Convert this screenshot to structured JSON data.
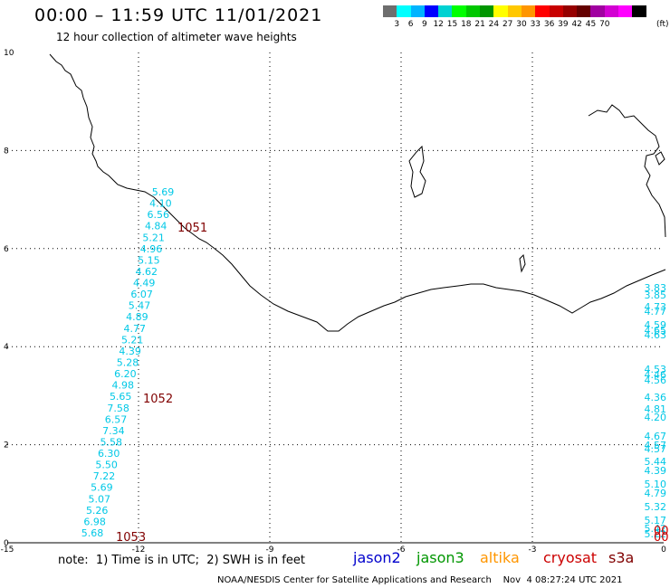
{
  "header": {
    "title": "00:00 – 11:59 UTC 11/01/2021",
    "subtitle": "12 hour collection of altimeter wave heights"
  },
  "colorbar": {
    "colors": [
      "#6e6e6e",
      "#00ffff",
      "#00b4ff",
      "#0000ff",
      "#00d2d2",
      "#00ff00",
      "#00c800",
      "#009600",
      "#ffff00",
      "#ffc800",
      "#ff9600",
      "#ff0000",
      "#c80000",
      "#960000",
      "#640000",
      "#a000a0",
      "#d200d2",
      "#ff00ff",
      "#000000"
    ],
    "labels": [
      "3",
      "6",
      "9",
      "12",
      "15",
      "18",
      "21",
      "24",
      "27",
      "30",
      "33",
      "36",
      "39",
      "42",
      "45",
      "70"
    ],
    "unit": "(ft)"
  },
  "axes": {
    "x_ticks": [
      "-15",
      "-12",
      "-9",
      "-6",
      "-3",
      "0"
    ],
    "y_ticks": [
      "0",
      "2",
      "4",
      "6",
      "8",
      "10"
    ]
  },
  "observations": {
    "left_track": [
      "5.69",
      "4.10",
      "6.56",
      "4.84",
      "5.21",
      "4.96",
      "5.15",
      "4.62",
      "4.49",
      "6.07",
      "5.47",
      "4.89",
      "4.77",
      "5.21",
      "4.39",
      "5.28",
      "6.20",
      "4.98",
      "5.65",
      "7.58",
      "6.57",
      "7.34",
      "5.58",
      "6.30",
      "5.50",
      "7.22",
      "5.69",
      "5.07",
      "5.26",
      "6.98",
      "5.68"
    ],
    "right_track": [
      "3.83",
      "3.85",
      "4.73",
      "4.77",
      "4.59",
      "4.65",
      "4.63",
      "4.53",
      "4.46",
      "4.56",
      "4.36",
      "4.81",
      "4.20",
      "4.67",
      "4.57",
      "4.57",
      "5.44",
      "4.39",
      "5.10",
      "4.79",
      "5.32",
      "5.17",
      "5.42",
      "5.22"
    ],
    "right_red": [
      "00",
      "00"
    ],
    "buoy_ids": [
      "1051",
      "1052",
      "1053"
    ]
  },
  "footer": {
    "note": "note:  1) Time is in UTC;  2) SWH is in feet",
    "satellites": [
      {
        "name": "jason2",
        "color": "#0000cc"
      },
      {
        "name": "jason3",
        "color": "#009600"
      },
      {
        "name": "altika",
        "color": "#ff9600"
      },
      {
        "name": "cryosat",
        "color": "#cc0000"
      },
      {
        "name": "s3a",
        "color": "#800000"
      }
    ],
    "credit": "NOAA/NESDIS Center for Satellite Applications and Research    Nov  4 08:27:24 UTC 2021"
  },
  "colors": {
    "obs_text": "#00c8e6",
    "buoy_text": "#800000",
    "coast": "#000000",
    "grid": "#000000"
  }
}
